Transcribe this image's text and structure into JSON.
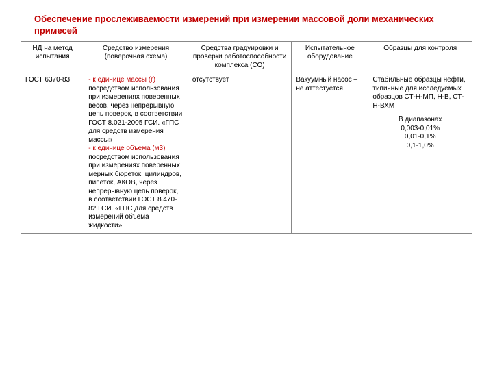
{
  "title": "Обеспечение прослеживаемости измерений при измерении массовой доли механических примесей",
  "headers": {
    "col1": "НД на метод испытания",
    "col2": "Средство измерения (поверочная схема)",
    "col3": "Средства градуировки и проверки работоспособности комплекса (СО)",
    "col4": "Испытательное оборудование",
    "col5": "Образцы для контроля"
  },
  "row": {
    "nd": "ГОСТ 6370-83",
    "measure_hl1": "- к единице массы (г)",
    "measure_txt1": " посредством использования при измерениях поверенных весов, через непрерывную цепь поверок, в соответствии ГОСТ 8.021-2005 ГСИ. «ГПС для средств измерения массы»",
    "measure_hl2": "- к единице объема (м3)",
    "measure_txt2": " посредством использования при измерениях поверенных мерных бюреток, цилиндров, пипеток, АКОВ, через непрерывную цепь поверок, в соответствии ГОСТ 8.470-82 ГСИ. «ГПС для средств измерений объема жидкости»",
    "calibration": "отсутствует",
    "equipment": "Вакуумный насос – не аттестуется",
    "samples": "Стабильные образцы нефти, типичные для исследуемых образцов СТ-Н-МП, Н-В, СТ-Н-ВХМ",
    "ranges_label": "В диапазонах",
    "range1": "0,003-0,01%",
    "range2": "0,01-0,1%",
    "range3": "0,1-1,0%"
  },
  "colors": {
    "accent": "#c00000",
    "border": "#888888",
    "text": "#000000",
    "background": "#ffffff"
  }
}
